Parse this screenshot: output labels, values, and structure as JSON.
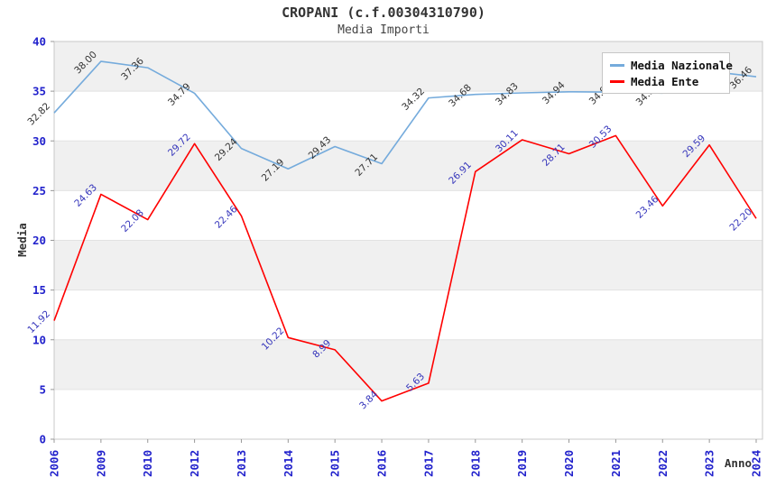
{
  "header": {
    "title": "CROPANI (c.f.00304310790)",
    "subtitle": "Media Importi"
  },
  "legend": {
    "items": [
      {
        "label": "Media Nazionale",
        "color": "#75abdc"
      },
      {
        "label": "Media Ente",
        "color": "#ff0000"
      }
    ]
  },
  "chart_data": {
    "type": "line",
    "title": "CROPANI (c.f.00304310790)",
    "subtitle": "Media Importi",
    "xlabel": "Anno",
    "ylabel": "Media",
    "ylim": [
      0,
      40
    ],
    "ytick_step": 5,
    "yticks": [
      0,
      5,
      10,
      15,
      20,
      25,
      30,
      35,
      40
    ],
    "grid": "alternating-horizontal-bands",
    "legend_position": "top-right-inside",
    "categories": [
      "2006",
      "2009",
      "2010",
      "2012",
      "2013",
      "2014",
      "2015",
      "2016",
      "2017",
      "2018",
      "2019",
      "2020",
      "2021",
      "2022",
      "2023",
      "2024"
    ],
    "series": [
      {
        "name": "Media Nazionale",
        "color": "#75abdc",
        "label_color": "#333333",
        "values": [
          32.82,
          38.0,
          37.36,
          34.79,
          29.24,
          27.19,
          29.43,
          27.71,
          34.32,
          34.68,
          34.83,
          34.94,
          34.9,
          34.8,
          37.0,
          36.46
        ],
        "labels": [
          "32.82",
          "38.00",
          "37.36",
          "34.79",
          "29.24",
          "27.19",
          "29.43",
          "27.71",
          "34.32",
          "34.68",
          "34.83",
          "34.94",
          "34.90",
          "34.80",
          "37.00",
          "36.46"
        ]
      },
      {
        "name": "Media Ente",
        "color": "#ff0000",
        "label_color": "#3535bb",
        "values": [
          11.92,
          24.63,
          22.08,
          29.72,
          22.46,
          10.22,
          8.99,
          3.84,
          5.63,
          26.91,
          30.11,
          28.71,
          30.53,
          23.46,
          29.59,
          22.2
        ],
        "labels": [
          "11.92",
          "24.63",
          "22.08",
          "29.72",
          "22.46",
          "10.22",
          "8.99",
          "3.84",
          "5.63",
          "26.91",
          "30.11",
          "28.71",
          "30.53",
          "23.46",
          "29.59",
          "22.20"
        ]
      }
    ],
    "colors": {
      "band": "#f0f0f0",
      "gridline": "#e2e2e2",
      "plot_border": "#c8c8c8",
      "tick_mark": "#999999",
      "tick_label": "#2222cc",
      "axis_title": "#333333"
    }
  }
}
